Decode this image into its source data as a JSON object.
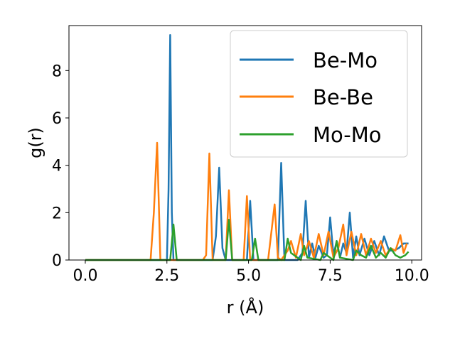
{
  "chart_data": {
    "type": "line",
    "xlabel": "r (Å)",
    "ylabel": "g(r)",
    "xlim": [
      -0.5,
      10.3
    ],
    "ylim": [
      0,
      9.9
    ],
    "xticks": [
      0.0,
      2.5,
      5.0,
      7.5,
      10.0
    ],
    "xtick_labels": [
      "0.0",
      "2.5",
      "5.0",
      "7.5",
      "10.0"
    ],
    "yticks": [
      0,
      2,
      4,
      6,
      8
    ],
    "ytick_labels": [
      "0",
      "2",
      "4",
      "6",
      "8"
    ],
    "legend_position": "top-right",
    "grid": false,
    "series": [
      {
        "name": "Be-Mo",
        "color": "#1f77b4",
        "x": [
          0.0,
          2.5,
          2.55,
          2.6,
          2.65,
          2.7,
          3.9,
          4.0,
          4.1,
          4.2,
          4.3,
          4.95,
          5.05,
          5.15,
          5.9,
          6.0,
          6.1,
          6.5,
          6.65,
          6.75,
          6.85,
          6.95,
          7.05,
          7.15,
          7.3,
          7.4,
          7.5,
          7.6,
          7.7,
          7.8,
          7.9,
          8.0,
          8.1,
          8.2,
          8.3,
          8.4,
          8.55,
          8.7,
          8.85,
          9.0,
          9.15,
          9.3,
          9.45,
          9.6,
          9.75,
          9.9
        ],
        "y": [
          0,
          0,
          3.0,
          9.5,
          2.0,
          0,
          0,
          1.0,
          3.9,
          0.5,
          0,
          0,
          2.5,
          0,
          0,
          4.1,
          0,
          0,
          0.3,
          2.5,
          0.1,
          0.7,
          0.1,
          0.6,
          0.1,
          0.2,
          1.8,
          0.2,
          0.8,
          0.1,
          0.7,
          0.3,
          2.0,
          0.1,
          1.0,
          0.2,
          0.9,
          0.2,
          0.8,
          0.2,
          1.0,
          0.4,
          0.4,
          0.5,
          0.7,
          0.7
        ]
      },
      {
        "name": "Be-Be",
        "color": "#ff7f0e",
        "x": [
          0.0,
          2.0,
          2.1,
          2.2,
          2.3,
          3.6,
          3.7,
          3.8,
          3.9,
          4.3,
          4.4,
          4.5,
          4.85,
          4.95,
          5.05,
          5.6,
          5.8,
          5.9,
          6.0,
          6.2,
          6.3,
          6.45,
          6.6,
          6.7,
          6.85,
          7.0,
          7.15,
          7.3,
          7.45,
          7.6,
          7.75,
          7.9,
          8.0,
          8.15,
          8.3,
          8.45,
          8.6,
          8.75,
          8.9,
          9.05,
          9.2,
          9.35,
          9.5,
          9.65,
          9.75,
          9.85
        ],
        "y": [
          0,
          0,
          2.0,
          4.95,
          0,
          0,
          0.2,
          4.5,
          0,
          0,
          2.95,
          0,
          0,
          2.7,
          0,
          0,
          2.35,
          0.1,
          0,
          0.4,
          0.8,
          0.1,
          1.1,
          0.2,
          0.8,
          0.1,
          1.1,
          0.2,
          1.2,
          0.1,
          0.5,
          1.5,
          0.2,
          1.2,
          0.2,
          1.1,
          0.2,
          0.9,
          0.3,
          0.8,
          0.2,
          0.5,
          0.4,
          1.05,
          0.3,
          0.7
        ]
      },
      {
        "name": "Mo-Mo",
        "color": "#2ca02c",
        "x": [
          0.0,
          2.6,
          2.7,
          2.8,
          4.3,
          4.4,
          4.5,
          5.1,
          5.2,
          5.3,
          6.1,
          6.2,
          6.3,
          6.6,
          6.7,
          6.8,
          7.2,
          7.3,
          7.6,
          7.7,
          7.8,
          8.2,
          8.3,
          8.45,
          8.6,
          8.75,
          8.9,
          9.05,
          9.2,
          9.35,
          9.5,
          9.65,
          9.8,
          9.9
        ],
        "y": [
          0,
          0,
          1.5,
          0,
          0,
          1.7,
          0,
          0,
          0.9,
          0,
          0,
          0.9,
          0.3,
          0,
          0.6,
          0.1,
          0,
          0.3,
          0,
          0.8,
          0.1,
          0,
          0.4,
          0.2,
          0.1,
          0.6,
          0.1,
          0.3,
          0.1,
          0.5,
          0.2,
          0.1,
          0.2,
          0.35
        ]
      }
    ]
  }
}
